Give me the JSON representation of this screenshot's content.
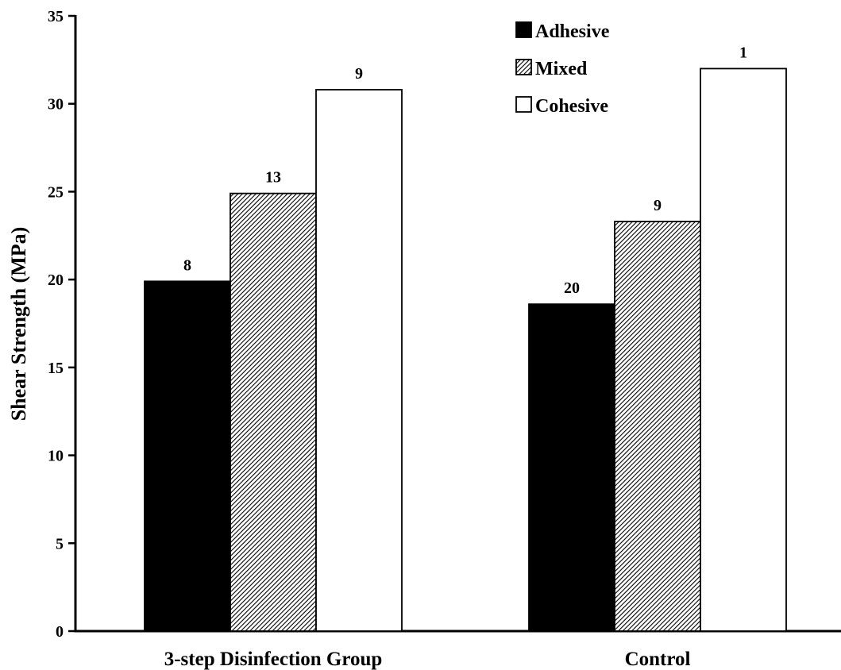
{
  "chart_data": {
    "type": "bar",
    "title": "",
    "xlabel": "",
    "ylabel": "Shear Strength (MPa)",
    "ylim": [
      0,
      35
    ],
    "yticks": [
      0,
      5,
      10,
      15,
      20,
      25,
      30,
      35
    ],
    "grid": false,
    "legend_position": "top-right",
    "categories": [
      "3-step Disinfection Group",
      "Control"
    ],
    "series": [
      {
        "name": "Adhesive",
        "values": [
          19.9,
          18.6
        ],
        "data_labels": [
          "8",
          "20"
        ],
        "fill": "solid",
        "color": "#000000"
      },
      {
        "name": "Mixed",
        "values": [
          24.9,
          23.3
        ],
        "data_labels": [
          "13",
          "9"
        ],
        "fill": "hatched",
        "color": "#000000"
      },
      {
        "name": "Cohesive",
        "values": [
          30.8,
          32.0
        ],
        "data_labels": [
          "9",
          "1"
        ],
        "fill": "empty",
        "color": "#ffffff"
      }
    ]
  }
}
